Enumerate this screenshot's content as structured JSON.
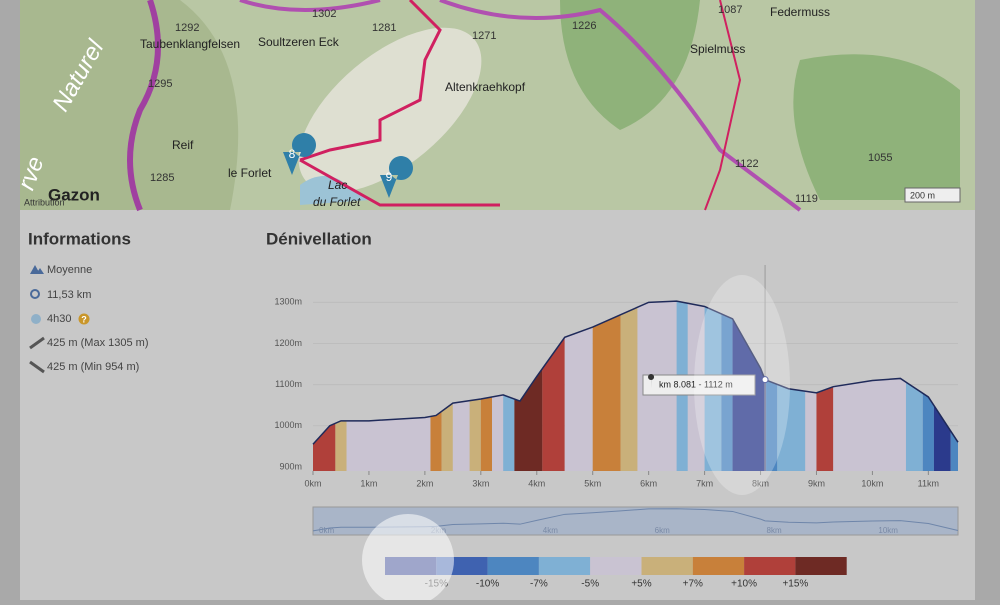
{
  "map": {
    "labels": [
      "Taubenklangfelsen",
      "1292",
      "Soultzeren Eck",
      "1302",
      "1281",
      "1271",
      "1226",
      "1087",
      "Federmuss",
      "Spielmuss",
      "Altenkraehkopf",
      "1295",
      "Reif",
      "le Forlet",
      "Lac",
      "du Forlet",
      "1285",
      "Gazon",
      "1122",
      "1055",
      "1119",
      "Naturel",
      "rve"
    ],
    "markers": [
      "8",
      "9"
    ],
    "scale": "200 m",
    "attribution": "Attribution"
  },
  "info": {
    "title": "Informations",
    "items": [
      "Moyenne",
      "11,53 km",
      "4h30",
      "425 m (Max 1305 m)",
      "425 m (Min 954 m)"
    ],
    "help": "?"
  },
  "chart_data": {
    "type": "area",
    "title": "Dénivellation",
    "x": [
      0,
      0.3,
      0.5,
      1,
      2,
      2.2,
      2.5,
      3,
      3.4,
      3.7,
      4,
      4.5,
      5,
      5.5,
      6,
      6.5,
      7,
      7.5,
      8,
      8.081,
      8.5,
      9,
      9.3,
      10,
      10.5,
      11,
      11.53
    ],
    "series": [
      {
        "name": "Altitude",
        "color": "#1f2a5a",
        "values": [
          955,
          1000,
          1012,
          1012,
          1020,
          1025,
          1055,
          1065,
          1075,
          1060,
          1120,
          1215,
          1240,
          1270,
          1300,
          1303,
          1290,
          1260,
          1140,
          1112,
          1090,
          1080,
          1095,
          1110,
          1115,
          1070,
          960
        ]
      }
    ],
    "xlim": [
      0,
      11.53
    ],
    "ylim": [
      890,
      1330
    ],
    "xticks": [
      {
        "value": 0,
        "label": "0km"
      },
      {
        "value": 1,
        "label": "1km"
      },
      {
        "value": 2,
        "label": "2km"
      },
      {
        "value": 3,
        "label": "3km"
      },
      {
        "value": 4,
        "label": "4km"
      },
      {
        "value": 5,
        "label": "5km"
      },
      {
        "value": 6,
        "label": "6km"
      },
      {
        "value": 7,
        "label": "7km"
      },
      {
        "value": 8,
        "label": "8km"
      },
      {
        "value": 9,
        "label": "9km"
      },
      {
        "value": 10,
        "label": "10km"
      },
      {
        "value": 11,
        "label": "11km"
      }
    ],
    "yticks": [
      {
        "value": 900,
        "label": "900m"
      },
      {
        "value": 1000,
        "label": "1000m"
      },
      {
        "value": 1100,
        "label": "1100m"
      },
      {
        "value": 1200,
        "label": "1200m"
      },
      {
        "value": 1300,
        "label": "1300m"
      }
    ],
    "bands": [
      {
        "from": 0,
        "to": 0.4,
        "color": "#b0403a"
      },
      {
        "from": 0.4,
        "to": 0.6,
        "color": "#c9b07a"
      },
      {
        "from": 0.6,
        "to": 2.1,
        "color": "#c9c3d2"
      },
      {
        "from": 2.1,
        "to": 2.3,
        "color": "#c8803a"
      },
      {
        "from": 2.3,
        "to": 2.5,
        "color": "#c9b07a"
      },
      {
        "from": 2.5,
        "to": 2.8,
        "color": "#c9c3d2"
      },
      {
        "from": 2.8,
        "to": 3,
        "color": "#c9b07a"
      },
      {
        "from": 3,
        "to": 3.2,
        "color": "#c8803a"
      },
      {
        "from": 3.2,
        "to": 3.4,
        "color": "#c9c3d2"
      },
      {
        "from": 3.4,
        "to": 3.6,
        "color": "#7fb0d4"
      },
      {
        "from": 3.6,
        "to": 4.1,
        "color": "#6e2a24"
      },
      {
        "from": 4.1,
        "to": 4.5,
        "color": "#b0403a"
      },
      {
        "from": 4.5,
        "to": 5,
        "color": "#c9c3d2"
      },
      {
        "from": 5,
        "to": 5.5,
        "color": "#c8803a"
      },
      {
        "from": 5.5,
        "to": 5.8,
        "color": "#c9b07a"
      },
      {
        "from": 5.8,
        "to": 6.5,
        "color": "#c9c3d2"
      },
      {
        "from": 6.5,
        "to": 6.7,
        "color": "#7fb0d4"
      },
      {
        "from": 6.7,
        "to": 7,
        "color": "#c9c3d2"
      },
      {
        "from": 7,
        "to": 7.3,
        "color": "#7fb0d4"
      },
      {
        "from": 7.3,
        "to": 7.5,
        "color": "#4d86c0"
      },
      {
        "from": 7.5,
        "to": 8.1,
        "color": "#2b3a8c"
      },
      {
        "from": 8.1,
        "to": 8.3,
        "color": "#4d86c0"
      },
      {
        "from": 8.3,
        "to": 8.8,
        "color": "#7fb0d4"
      },
      {
        "from": 8.8,
        "to": 9,
        "color": "#c9c3d2"
      },
      {
        "from": 9,
        "to": 9.3,
        "color": "#b0403a"
      },
      {
        "from": 9.3,
        "to": 10.6,
        "color": "#c9c3d2"
      },
      {
        "from": 10.6,
        "to": 10.9,
        "color": "#7fb0d4"
      },
      {
        "from": 10.9,
        "to": 11.1,
        "color": "#4d86c0"
      },
      {
        "from": 11.1,
        "to": 11.4,
        "color": "#2b3a8c"
      },
      {
        "from": 11.4,
        "to": 11.53,
        "color": "#4d86c0"
      }
    ],
    "tooltip": {
      "text": "km 8.081 - 1112 m",
      "x": 8.081,
      "y": 1112
    },
    "legend": {
      "colors": [
        "#2b3a8c",
        "#3f62b0",
        "#4d86c0",
        "#7fb0d4",
        "#c9c3d2",
        "#c9b07a",
        "#c8803a",
        "#b0403a",
        "#6e2a24"
      ],
      "labels": [
        "-15%",
        "-10%",
        "-7%",
        "-5%",
        "+5%",
        "+7%",
        "+10%",
        "+15%"
      ]
    },
    "navigator": {
      "ticks": [
        {
          "value": 0,
          "label": "0km"
        },
        {
          "value": 2,
          "label": "2km"
        },
        {
          "value": 4,
          "label": "4km"
        },
        {
          "value": 6,
          "label": "6km"
        },
        {
          "value": 8,
          "label": "8km"
        },
        {
          "value": 10,
          "label": "10km"
        }
      ]
    }
  }
}
